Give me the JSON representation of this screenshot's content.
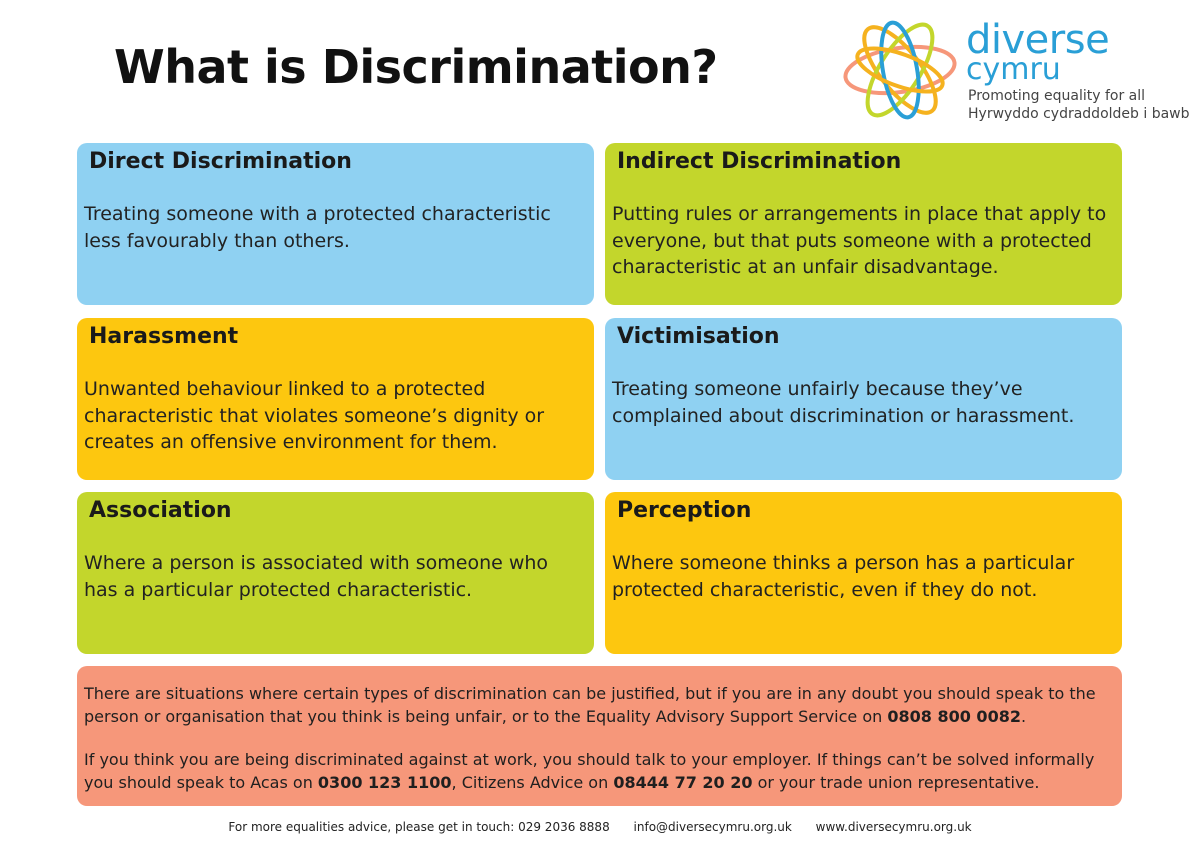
{
  "title": "What is Discrimination?",
  "logo": {
    "name_line1": "diverse",
    "name_line2": "cymru",
    "tagline_en": "Promoting equality for all",
    "tagline_cy": "Hyrwyddo cydraddoldeb i bawb",
    "colors": [
      "#f5a623",
      "#2a9fd6",
      "#c3d62c",
      "#f6977a"
    ]
  },
  "cards": [
    {
      "title": "Direct Discrimination",
      "body": "Treating someone with a protected characteristic less favourably than others.",
      "color": "#8fd1f2"
    },
    {
      "title": "Indirect Discrimination",
      "body": "Putting rules or arrangements in place that apply to everyone, but that puts someone with a protected characteristic at an unfair disadvantage.",
      "color": "#c3d62c"
    },
    {
      "title": "Harassment",
      "body": "Unwanted behaviour linked to a protected characteristic that violates someone’s dignity or creates an offensive environment for them.",
      "color": "#fdc70f"
    },
    {
      "title": "Victimisation",
      "body": "Treating someone unfairly because they’ve complained about discrimination or harassment.",
      "color": "#8fd1f2"
    },
    {
      "title": "Association",
      "body": "Where a person is associated with someone who has a particular protected characteristic.",
      "color": "#c3d62c"
    },
    {
      "title": "Perception",
      "body": "Where someone thinks a person has a particular protected characteristic, even if they do not.",
      "color": "#fdc70f"
    }
  ],
  "note": {
    "p1_text": "There are situations where certain types of discrimination can be justified, but if you are in any doubt you should speak to the person or organisation that you think is being unfair, or to the Equality Advisory Support Service on ",
    "p1_phone": "0808 800 0082",
    "p1_end": ".",
    "p2_text1": "If you think you are being discriminated against at work, you should talk to your employer. If things can’t be solved informally you should speak to Acas on ",
    "p2_phone1": "0300 123 1100",
    "p2_text2": ", Citizens Advice on ",
    "p2_phone2": "08444 77 20 20",
    "p2_text3": " or your trade union representative."
  },
  "footer": {
    "advice": "For more equalities advice, please get in touch: 029 2036 8888",
    "email": "info@diversecymru.org.uk",
    "website": "www.diversecymru.org.uk"
  }
}
